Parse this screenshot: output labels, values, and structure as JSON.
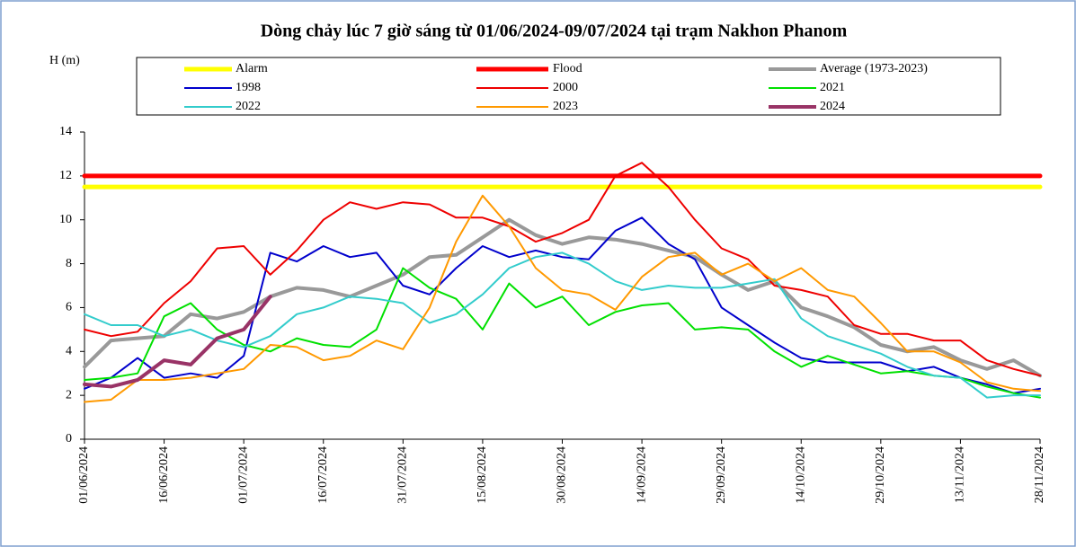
{
  "chart_data": {
    "type": "line",
    "title": "Dòng chảy lúc 7 giờ sáng từ 01/06/2024-09/07/2024 tại trạm Nakhon Phanom",
    "y_label": "H (m)",
    "x": [
      "01/06/2024",
      "06/06/2024",
      "11/06/2024",
      "16/06/2024",
      "21/06/2024",
      "26/06/2024",
      "01/07/2024",
      "06/07/2024",
      "11/07/2024",
      "16/07/2024",
      "21/07/2024",
      "26/07/2024",
      "31/07/2024",
      "05/08/2024",
      "10/08/2024",
      "15/08/2024",
      "20/08/2024",
      "25/08/2024",
      "30/08/2024",
      "04/09/2024",
      "09/09/2024",
      "14/09/2024",
      "19/09/2024",
      "24/09/2024",
      "29/09/2024",
      "04/10/2024",
      "09/10/2024",
      "14/10/2024",
      "19/10/2024",
      "24/10/2024",
      "29/10/2024",
      "03/11/2024",
      "08/11/2024",
      "13/11/2024",
      "18/11/2024",
      "23/11/2024",
      "28/11/2024"
    ],
    "xticks": [
      "01/06/2024",
      "16/06/2024",
      "01/07/2024",
      "16/07/2024",
      "31/07/2024",
      "15/08/2024",
      "30/08/2024",
      "14/09/2024",
      "29/09/2024",
      "14/10/2024",
      "29/10/2024",
      "13/11/2024",
      "28/11/2024"
    ],
    "ylim": [
      0,
      14
    ],
    "yticks": [
      0,
      2,
      4,
      6,
      8,
      10,
      12,
      14
    ],
    "series": [
      {
        "name": "Alarm",
        "color": "#ffff00",
        "width": 5,
        "values": [
          11.5,
          11.5,
          11.5,
          11.5,
          11.5,
          11.5,
          11.5,
          11.5,
          11.5,
          11.5,
          11.5,
          11.5,
          11.5,
          11.5,
          11.5,
          11.5,
          11.5,
          11.5,
          11.5,
          11.5,
          11.5,
          11.5,
          11.5,
          11.5,
          11.5,
          11.5,
          11.5,
          11.5,
          11.5,
          11.5,
          11.5,
          11.5,
          11.5,
          11.5,
          11.5,
          11.5,
          11.5
        ]
      },
      {
        "name": "Flood",
        "color": "#ff0000",
        "width": 5,
        "values": [
          12,
          12,
          12,
          12,
          12,
          12,
          12,
          12,
          12,
          12,
          12,
          12,
          12,
          12,
          12,
          12,
          12,
          12,
          12,
          12,
          12,
          12,
          12,
          12,
          12,
          12,
          12,
          12,
          12,
          12,
          12,
          12,
          12,
          12,
          12,
          12,
          12
        ]
      },
      {
        "name": "Average (1973-2023)",
        "color": "#999999",
        "width": 4,
        "values": [
          3.3,
          4.5,
          4.6,
          4.7,
          5.7,
          5.5,
          5.8,
          6.5,
          6.9,
          6.8,
          6.5,
          7.0,
          7.5,
          8.3,
          8.4,
          9.2,
          10.0,
          9.3,
          8.9,
          9.2,
          9.1,
          8.9,
          8.6,
          8.3,
          7.5,
          6.8,
          7.2,
          6.0,
          5.6,
          5.1,
          4.3,
          4.0,
          4.2,
          3.6,
          3.2,
          3.6,
          2.9
        ]
      },
      {
        "name": "1998",
        "color": "#0000cc",
        "width": 2,
        "values": [
          2.3,
          2.8,
          3.7,
          2.8,
          3.0,
          2.8,
          3.8,
          8.5,
          8.1,
          8.8,
          8.3,
          8.5,
          7.0,
          6.6,
          7.8,
          8.8,
          8.3,
          8.6,
          8.3,
          8.2,
          9.5,
          10.1,
          8.9,
          8.2,
          6.0,
          5.2,
          4.4,
          3.7,
          3.5,
          3.5,
          3.5,
          3.1,
          3.3,
          2.8,
          2.5,
          2.1,
          2.3
        ]
      },
      {
        "name": "2000",
        "color": "#ee0000",
        "width": 2,
        "values": [
          5.0,
          4.7,
          4.9,
          6.2,
          7.2,
          8.7,
          8.8,
          7.5,
          8.6,
          10.0,
          10.8,
          10.5,
          10.8,
          10.7,
          10.1,
          10.1,
          9.7,
          9.0,
          9.4,
          10.0,
          12.0,
          12.6,
          11.5,
          10.0,
          8.7,
          8.2,
          7.0,
          6.8,
          6.5,
          5.2,
          4.8,
          4.8,
          4.5,
          4.5,
          3.6,
          3.2,
          2.9
        ]
      },
      {
        "name": "2021",
        "color": "#00e000",
        "width": 2,
        "values": [
          2.7,
          2.8,
          3.0,
          5.6,
          6.2,
          5.0,
          4.3,
          4.0,
          4.6,
          4.3,
          4.2,
          5.0,
          7.8,
          6.9,
          6.4,
          5.0,
          7.1,
          6.0,
          6.5,
          5.2,
          5.8,
          6.1,
          6.2,
          5.0,
          5.1,
          5.0,
          4.0,
          3.3,
          3.8,
          3.4,
          3.0,
          3.1,
          2.9,
          2.8,
          2.4,
          2.1,
          1.9
        ]
      },
      {
        "name": "2022",
        "color": "#33cccc",
        "width": 2,
        "values": [
          5.7,
          5.2,
          5.2,
          4.7,
          5.0,
          4.5,
          4.2,
          4.7,
          5.7,
          6.0,
          6.5,
          6.4,
          6.2,
          5.3,
          5.7,
          6.6,
          7.8,
          8.3,
          8.5,
          8.0,
          7.2,
          6.8,
          7.0,
          6.9,
          6.9,
          7.1,
          7.3,
          5.5,
          4.7,
          4.3,
          3.9,
          3.3,
          2.9,
          2.8,
          1.9,
          2.0,
          2.0
        ]
      },
      {
        "name": "2023",
        "color": "#ff9900",
        "width": 2,
        "values": [
          1.7,
          1.8,
          2.7,
          2.7,
          2.8,
          3.0,
          3.2,
          4.3,
          4.2,
          3.6,
          3.8,
          4.5,
          4.1,
          6.0,
          9.0,
          11.1,
          9.7,
          7.8,
          6.8,
          6.6,
          5.9,
          7.4,
          8.3,
          8.5,
          7.5,
          8.0,
          7.2,
          7.8,
          6.8,
          6.5,
          5.3,
          4.0,
          4.0,
          3.5,
          2.6,
          2.3,
          2.2
        ]
      },
      {
        "name": "2024",
        "color": "#993366",
        "width": 4,
        "values": [
          2.5,
          2.4,
          2.7,
          3.6,
          3.4,
          4.6,
          5.0,
          6.5,
          null,
          null,
          null,
          null,
          null,
          null,
          null,
          null,
          null,
          null,
          null,
          null,
          null,
          null,
          null,
          null,
          null,
          null,
          null,
          null,
          null,
          null,
          null,
          null,
          null,
          null,
          null,
          null,
          null
        ]
      }
    ]
  }
}
